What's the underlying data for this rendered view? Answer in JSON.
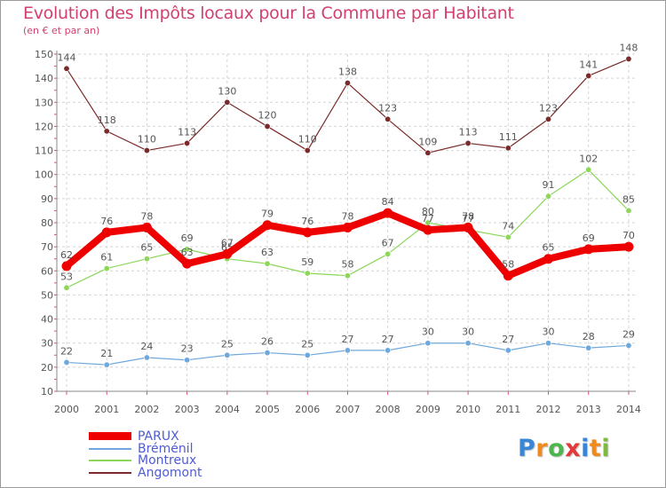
{
  "chart_data": {
    "type": "line",
    "title": "Evolution des Impôts locaux pour la Commune par Habitant",
    "subtitle": "(en € et par an)",
    "x": [
      "2000",
      "2001",
      "2002",
      "2003",
      "2004",
      "2005",
      "2006",
      "2007",
      "2008",
      "2009",
      "2010",
      "2011",
      "2012",
      "2013",
      "2014"
    ],
    "ylim": [
      10,
      150
    ],
    "yticks": [
      10,
      20,
      30,
      40,
      50,
      60,
      70,
      80,
      90,
      100,
      110,
      120,
      130,
      140,
      150
    ],
    "grid": true,
    "legend_position": "bottom-left",
    "series": [
      {
        "name": "PARUX",
        "color": "#ee0000",
        "values": [
          62,
          76,
          78,
          63,
          67,
          79,
          76,
          78,
          84,
          77,
          78,
          58,
          65,
          69,
          70
        ]
      },
      {
        "name": "Bréménil",
        "color": "#6fa8dc",
        "values": [
          22,
          21,
          24,
          23,
          25,
          26,
          25,
          27,
          27,
          30,
          30,
          27,
          30,
          28,
          29
        ]
      },
      {
        "name": "Montreux",
        "color": "#8cd65a",
        "values": [
          53,
          61,
          65,
          69,
          65,
          63,
          59,
          58,
          67,
          80,
          77,
          74,
          91,
          102,
          85
        ]
      },
      {
        "name": "Angomont",
        "color": "#7a2a2a",
        "values": [
          144,
          118,
          110,
          113,
          130,
          120,
          110,
          138,
          123,
          109,
          113,
          111,
          123,
          141,
          148
        ]
      }
    ]
  },
  "logo": {
    "letters": [
      "P",
      "r",
      "o",
      "x",
      "i",
      "t",
      "i"
    ],
    "colors": [
      "#3a86d6",
      "#f08a1c",
      "#4bb64b",
      "#e23a3a",
      "#3a86d6",
      "#f08a1c",
      "#7dbb3a"
    ]
  }
}
